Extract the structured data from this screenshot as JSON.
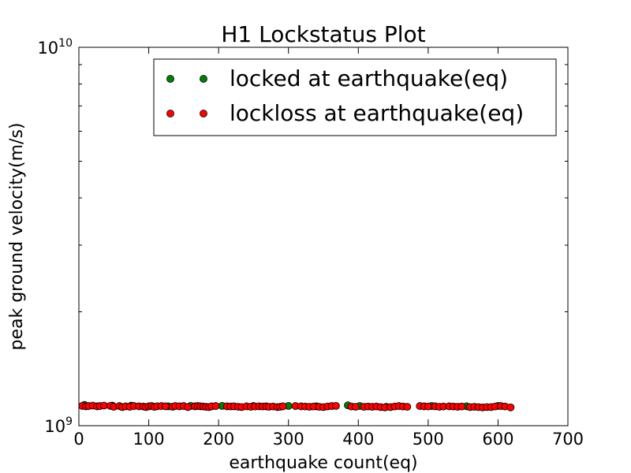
{
  "chart_data": {
    "type": "scatter",
    "title": "H1 Lockstatus Plot",
    "xlabel": "earthquake count(eq)",
    "ylabel": "peak ground velocity(m/s)",
    "xlim": [
      0,
      700
    ],
    "ylim": [
      1000000000,
      10000000000
    ],
    "yscale": "log",
    "x_ticks": [
      0,
      100,
      200,
      300,
      400,
      500,
      600,
      700
    ],
    "x_tick_labels": [
      "0",
      "100",
      "200",
      "300",
      "400",
      "500",
      "600",
      "700"
    ],
    "y_ticks": [
      {
        "value": 1000000000,
        "base": "10",
        "exp": "9"
      },
      {
        "value": 10000000000,
        "base": "10",
        "exp": "10"
      }
    ],
    "legend_position": "top-right",
    "series": [
      {
        "name": "locked at earthquake(eq)",
        "color": "#008000",
        "points": [
          [
            8,
            1135000000
          ],
          [
            48,
            1130000000
          ],
          [
            75,
            1130000000
          ],
          [
            128,
            1125000000
          ],
          [
            160,
            1128000000
          ],
          [
            205,
            1128000000
          ],
          [
            250,
            1127000000
          ],
          [
            300,
            1128000000
          ],
          [
            340,
            1125000000
          ],
          [
            385,
            1132000000
          ],
          [
            402,
            1127000000
          ],
          [
            440,
            1122000000
          ],
          [
            505,
            1127000000
          ],
          [
            555,
            1125000000
          ],
          [
            600,
            1128000000
          ]
        ]
      },
      {
        "name": "lockloss at earthquake(eq)",
        "color": "#ff0000",
        "points": [
          [
            5,
            1128000000
          ],
          [
            10,
            1125000000
          ],
          [
            14,
            1127000000
          ],
          [
            20,
            1130000000
          ],
          [
            26,
            1125000000
          ],
          [
            30,
            1127000000
          ],
          [
            36,
            1130000000
          ],
          [
            45,
            1128000000
          ],
          [
            50,
            1122000000
          ],
          [
            58,
            1127000000
          ],
          [
            62,
            1120000000
          ],
          [
            67,
            1125000000
          ],
          [
            73,
            1122000000
          ],
          [
            79,
            1127000000
          ],
          [
            86,
            1125000000
          ],
          [
            92,
            1124000000
          ],
          [
            96,
            1120000000
          ],
          [
            100,
            1125000000
          ],
          [
            104,
            1127000000
          ],
          [
            108,
            1122000000
          ],
          [
            112,
            1125000000
          ],
          [
            118,
            1127000000
          ],
          [
            124,
            1125000000
          ],
          [
            134,
            1122000000
          ],
          [
            138,
            1127000000
          ],
          [
            144,
            1125000000
          ],
          [
            150,
            1127000000
          ],
          [
            156,
            1120000000
          ],
          [
            166,
            1125000000
          ],
          [
            170,
            1127000000
          ],
          [
            174,
            1125000000
          ],
          [
            178,
            1124000000
          ],
          [
            182,
            1122000000
          ],
          [
            186,
            1120000000
          ],
          [
            190,
            1125000000
          ],
          [
            196,
            1127000000
          ],
          [
            212,
            1125000000
          ],
          [
            217,
            1124000000
          ],
          [
            222,
            1125000000
          ],
          [
            228,
            1122000000
          ],
          [
            233,
            1120000000
          ],
          [
            240,
            1125000000
          ],
          [
            246,
            1122000000
          ],
          [
            252,
            1124000000
          ],
          [
            258,
            1125000000
          ],
          [
            263,
            1124000000
          ],
          [
            268,
            1125000000
          ],
          [
            272,
            1122000000
          ],
          [
            278,
            1124000000
          ],
          [
            284,
            1120000000
          ],
          [
            288,
            1122000000
          ],
          [
            292,
            1125000000
          ],
          [
            310,
            1127000000
          ],
          [
            318,
            1125000000
          ],
          [
            324,
            1124000000
          ],
          [
            330,
            1122000000
          ],
          [
            336,
            1124000000
          ],
          [
            344,
            1122000000
          ],
          [
            350,
            1120000000
          ],
          [
            356,
            1124000000
          ],
          [
            362,
            1127000000
          ],
          [
            368,
            1128000000
          ],
          [
            390,
            1124000000
          ],
          [
            396,
            1122000000
          ],
          [
            408,
            1122000000
          ],
          [
            414,
            1124000000
          ],
          [
            420,
            1122000000
          ],
          [
            426,
            1124000000
          ],
          [
            432,
            1120000000
          ],
          [
            438,
            1118000000
          ],
          [
            446,
            1120000000
          ],
          [
            452,
            1124000000
          ],
          [
            458,
            1127000000
          ],
          [
            464,
            1124000000
          ],
          [
            470,
            1122000000
          ],
          [
            488,
            1127000000
          ],
          [
            494,
            1125000000
          ],
          [
            500,
            1124000000
          ],
          [
            510,
            1125000000
          ],
          [
            516,
            1122000000
          ],
          [
            522,
            1124000000
          ],
          [
            530,
            1125000000
          ],
          [
            536,
            1124000000
          ],
          [
            542,
            1122000000
          ],
          [
            548,
            1124000000
          ],
          [
            560,
            1120000000
          ],
          [
            566,
            1122000000
          ],
          [
            572,
            1120000000
          ],
          [
            578,
            1118000000
          ],
          [
            584,
            1120000000
          ],
          [
            590,
            1120000000
          ],
          [
            596,
            1124000000
          ],
          [
            604,
            1127000000
          ],
          [
            610,
            1124000000
          ],
          [
            618,
            1118000000
          ]
        ]
      }
    ]
  }
}
